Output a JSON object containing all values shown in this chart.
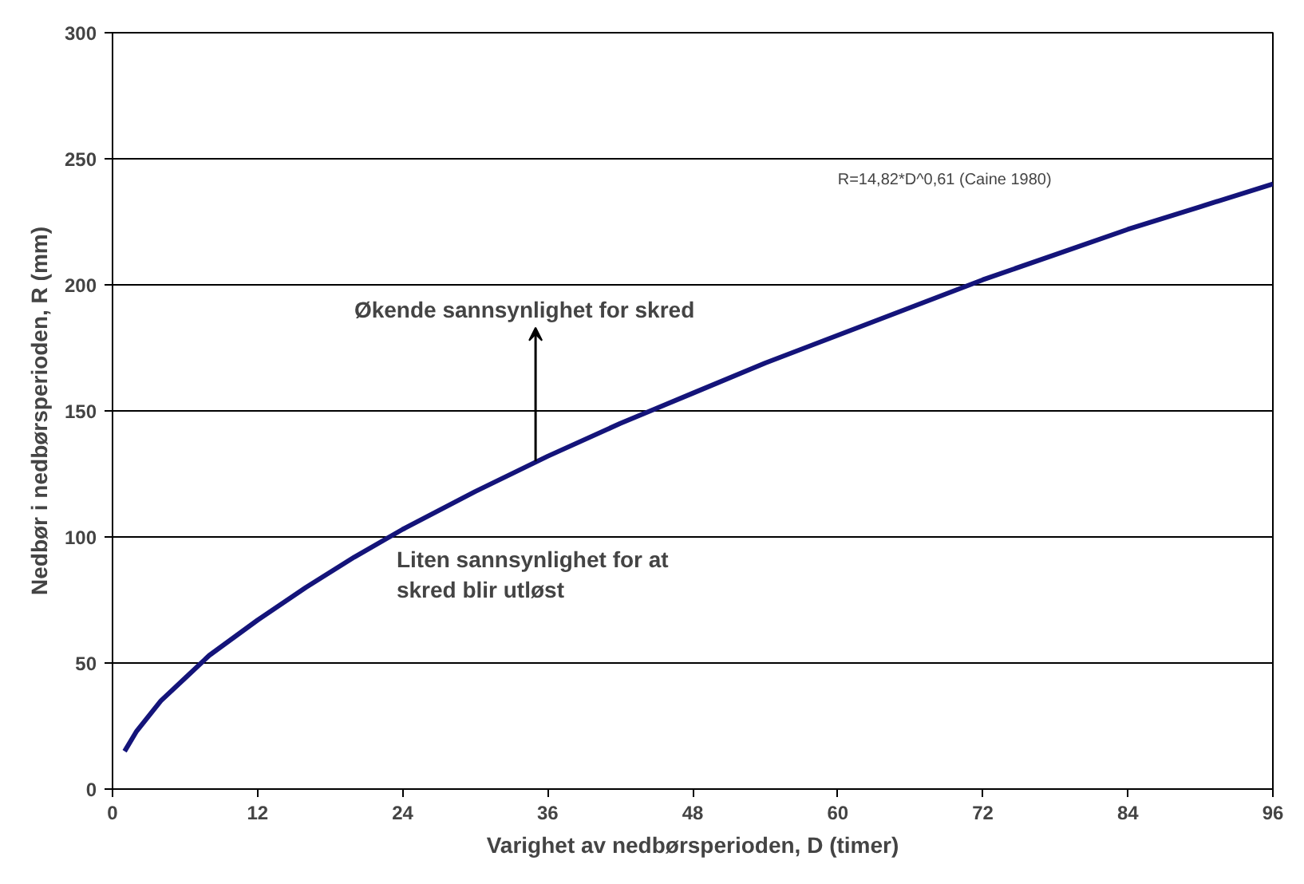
{
  "chart_data": {
    "type": "line",
    "xlabel": "Varighet av nedbørsperioden, D (timer)",
    "ylabel": "Nedbør i nedbørsperioden, R (mm)",
    "x": [
      1,
      2,
      4,
      6,
      8,
      12,
      16,
      20,
      24,
      30,
      36,
      42,
      48,
      54,
      60,
      66,
      72,
      78,
      84,
      90,
      96
    ],
    "series": [
      {
        "color": "#14147a",
        "values": [
          15,
          23,
          35,
          44,
          53,
          67,
          80,
          92,
          103,
          118,
          132,
          145,
          157,
          169,
          180,
          191,
          202,
          212,
          222,
          231,
          240
        ]
      }
    ],
    "xlim": [
      0,
      96
    ],
    "ylim": [
      0,
      300
    ],
    "xticks": [
      0,
      12,
      24,
      36,
      48,
      60,
      72,
      84,
      96
    ],
    "yticks": [
      0,
      50,
      100,
      150,
      200,
      250,
      300
    ],
    "grid": "y",
    "marker": "none",
    "line_style": "solid",
    "annotations": [
      "R=14,82*D^0,61 (Caine 1980)",
      "Økende sannsynlighet for skred",
      "Liten sannsynlighet for at\nskred blir utløst"
    ]
  }
}
